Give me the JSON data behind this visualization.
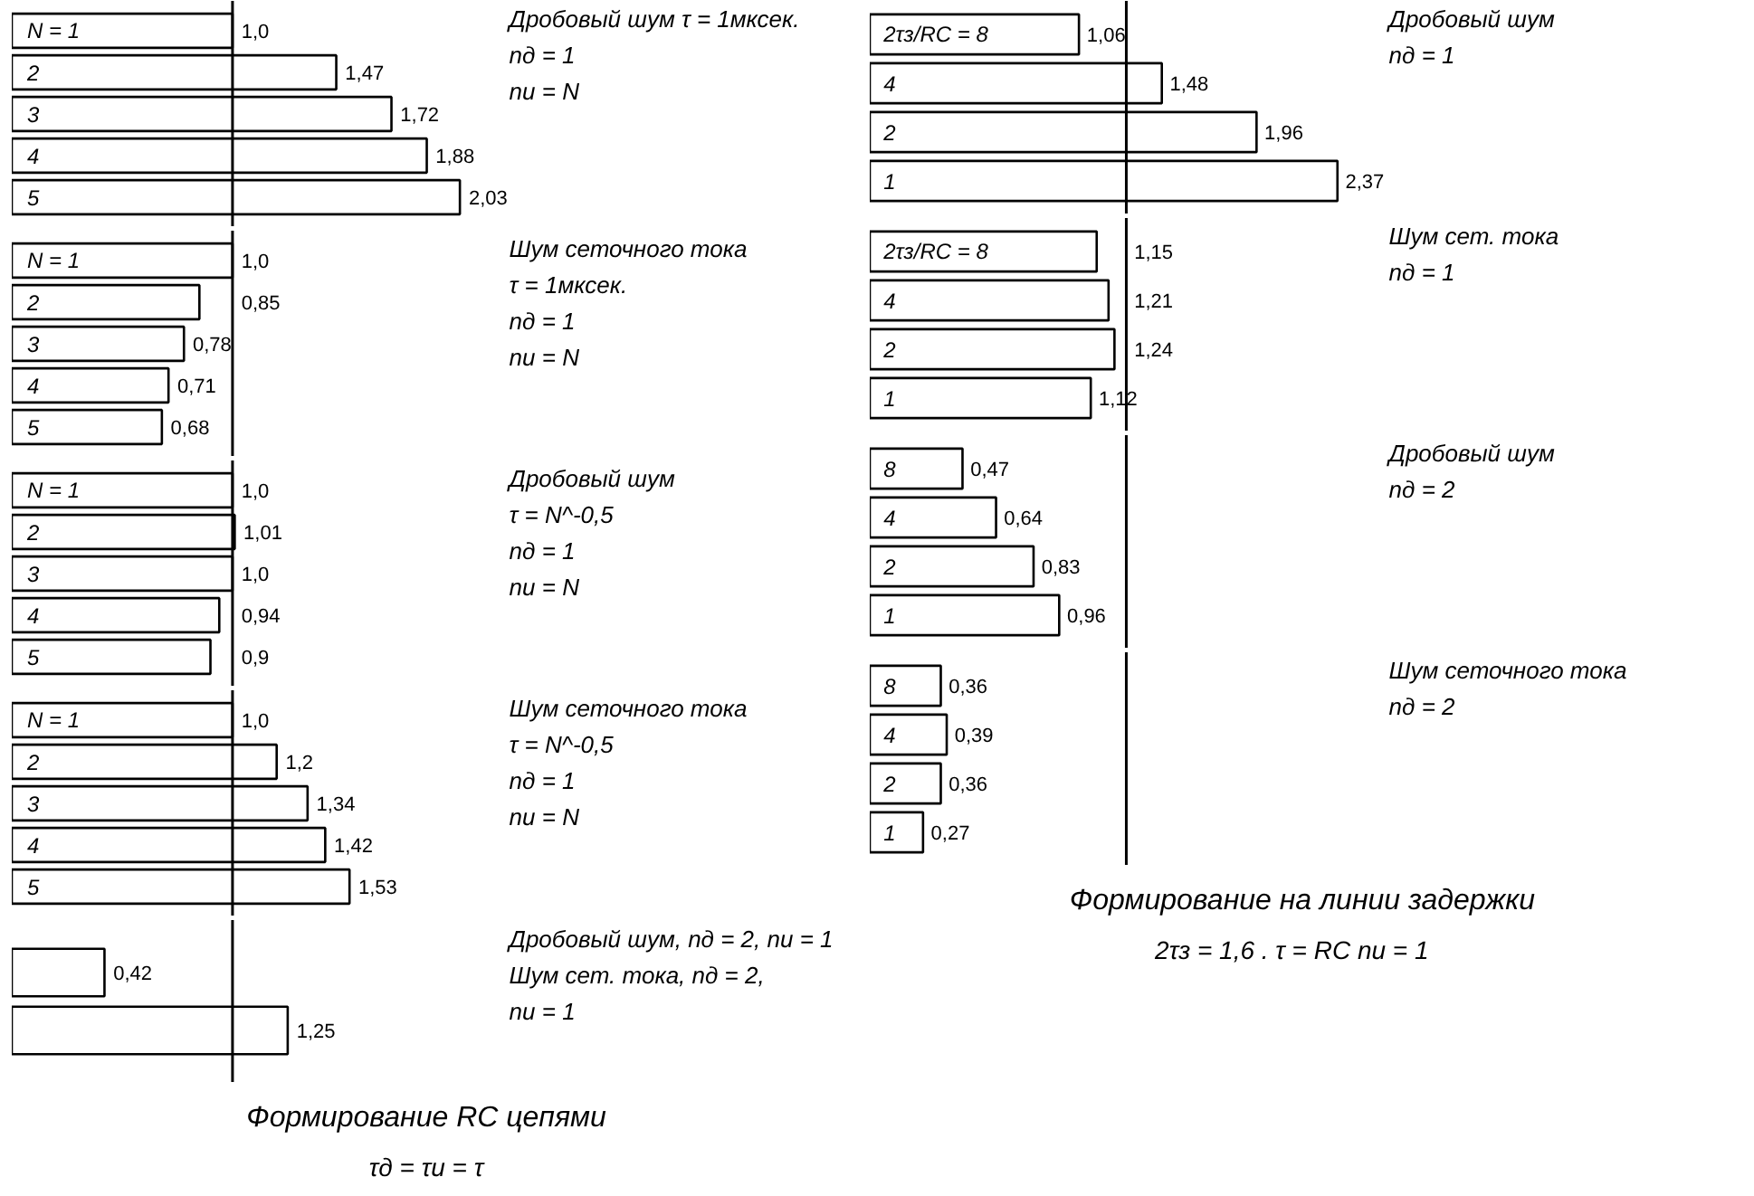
{
  "chart_data": [
    {
      "type": "bar",
      "orientation": "horizontal",
      "annotations": [
        "Дробовый шум τ = 1мксек.",
        "nд = 1",
        "nи = N"
      ],
      "categories": [
        "N = 1",
        "2",
        "3",
        "4",
        "5"
      ],
      "values": [
        1.0,
        1.47,
        1.72,
        1.88,
        2.03
      ],
      "value_labels": [
        "1,0",
        "1,47",
        "1,72",
        "1,88",
        "2,03"
      ],
      "color": "#ffffff",
      "tick_labels": false,
      "ref_lines": [
        {
          "axis": "x",
          "value": 1.0,
          "label": null
        }
      ]
    },
    {
      "type": "bar",
      "orientation": "horizontal",
      "annotations": [
        "Шум сеточного тока",
        "τ = 1мксек.",
        "nд = 1",
        "nи = N"
      ],
      "categories": [
        "N = 1",
        "2",
        "3",
        "4",
        "5"
      ],
      "values": [
        1.0,
        0.85,
        0.78,
        0.71,
        0.68
      ],
      "value_labels": [
        "1,0",
        "0,85",
        "0,78",
        "0,71",
        "0,68"
      ],
      "color": "#ffffff",
      "tick_labels": false,
      "ref_lines": [
        {
          "axis": "x",
          "value": 1.0,
          "label": null
        }
      ]
    },
    {
      "type": "bar",
      "orientation": "horizontal",
      "annotations": [
        "Дробовый шум",
        "τ = N^-0,5",
        "nд = 1",
        "nи = N"
      ],
      "categories": [
        "N = 1",
        "2",
        "3",
        "4",
        "5"
      ],
      "values": [
        1.0,
        1.01,
        1.0,
        0.94,
        0.9
      ],
      "value_labels": [
        "1,0",
        "1,01",
        "1,0",
        "0,94",
        "0,9"
      ],
      "color": "#ffffff",
      "tick_labels": false,
      "ref_lines": [
        {
          "axis": "x",
          "value": 1.0,
          "label": null
        }
      ]
    },
    {
      "type": "bar",
      "orientation": "horizontal",
      "annotations": [
        "Шум сеточного тока",
        "τ = N^-0,5",
        "nд = 1",
        "nи = N"
      ],
      "categories": [
        "N = 1",
        "2",
        "3",
        "4",
        "5"
      ],
      "values": [
        1.0,
        1.2,
        1.34,
        1.42,
        1.53
      ],
      "value_labels": [
        "1,0",
        "1,2",
        "1,34",
        "1,42",
        "1,53"
      ],
      "color": "#ffffff",
      "tick_labels": false,
      "ref_lines": [
        {
          "axis": "x",
          "value": 1.0,
          "label": null
        }
      ]
    },
    {
      "type": "bar",
      "orientation": "horizontal",
      "annotations": [
        "Дробовый шум, nд = 2, nи = 1",
        "Шум сет. тока, nд = 2,",
        "nи = 1"
      ],
      "categories": [
        null,
        null
      ],
      "values": [
        0.42,
        1.25
      ],
      "value_labels": [
        "0,42",
        "1,25"
      ],
      "color": "#ffffff",
      "tick_labels": false,
      "ref_lines": [
        {
          "axis": "x",
          "value": 1.0,
          "label": null
        }
      ]
    },
    {
      "type": "other",
      "title": "Формирование RC цепями",
      "subtitle": "τд = τи = τ"
    },
    {
      "type": "bar",
      "orientation": "horizontal",
      "annotations": [
        "Дробовый шум",
        "nд = 1"
      ],
      "categories": [
        "2τз/RC = 8",
        "4",
        "2",
        "1"
      ],
      "values": [
        1.06,
        1.48,
        1.96,
        2.37
      ],
      "value_labels": [
        "1,06",
        "1,48",
        "1,96",
        "2,37"
      ],
      "color": "#ffffff",
      "tick_labels": false,
      "ref_lines": [
        {
          "axis": "x",
          "value": 1.3,
          "label": null
        }
      ]
    },
    {
      "type": "bar",
      "orientation": "horizontal",
      "annotations": [
        "Шум сет. тока",
        "nд = 1"
      ],
      "categories": [
        "2τз/RC = 8",
        "4",
        "2",
        "1"
      ],
      "values": [
        1.15,
        1.21,
        1.24,
        1.12
      ],
      "value_labels": [
        "1,15",
        "1,21",
        "1,24",
        "1,12"
      ],
      "color": "#ffffff",
      "tick_labels": false,
      "ref_lines": [
        {
          "axis": "x",
          "value": 1.3,
          "label": null
        }
      ]
    },
    {
      "type": "bar",
      "orientation": "horizontal",
      "annotations": [
        "Дробовый шум",
        "nд = 2"
      ],
      "categories": [
        "8",
        "4",
        "2",
        "1"
      ],
      "values": [
        0.47,
        0.64,
        0.83,
        0.96
      ],
      "value_labels": [
        "0,47",
        "0,64",
        "0,83",
        "0,96"
      ],
      "color": "#ffffff",
      "tick_labels": false,
      "ref_lines": [
        {
          "axis": "x",
          "value": 1.3,
          "label": null
        }
      ]
    },
    {
      "type": "bar",
      "orientation": "horizontal",
      "annotations": [
        "Шум сеточного тока",
        "nд = 2"
      ],
      "categories": [
        "8",
        "4",
        "2",
        "1"
      ],
      "values": [
        0.36,
        0.39,
        0.36,
        0.27
      ],
      "value_labels": [
        "0,36",
        "0,39",
        "0,36",
        "0,27"
      ],
      "color": "#ffffff",
      "tick_labels": false,
      "ref_lines": [
        {
          "axis": "x",
          "value": 1.3,
          "label": null
        }
      ]
    },
    {
      "type": "other",
      "title": "Формирование на линии задержки",
      "subtitle": "2τз = 1,6 .  τ = RC   nи = 1"
    }
  ]
}
